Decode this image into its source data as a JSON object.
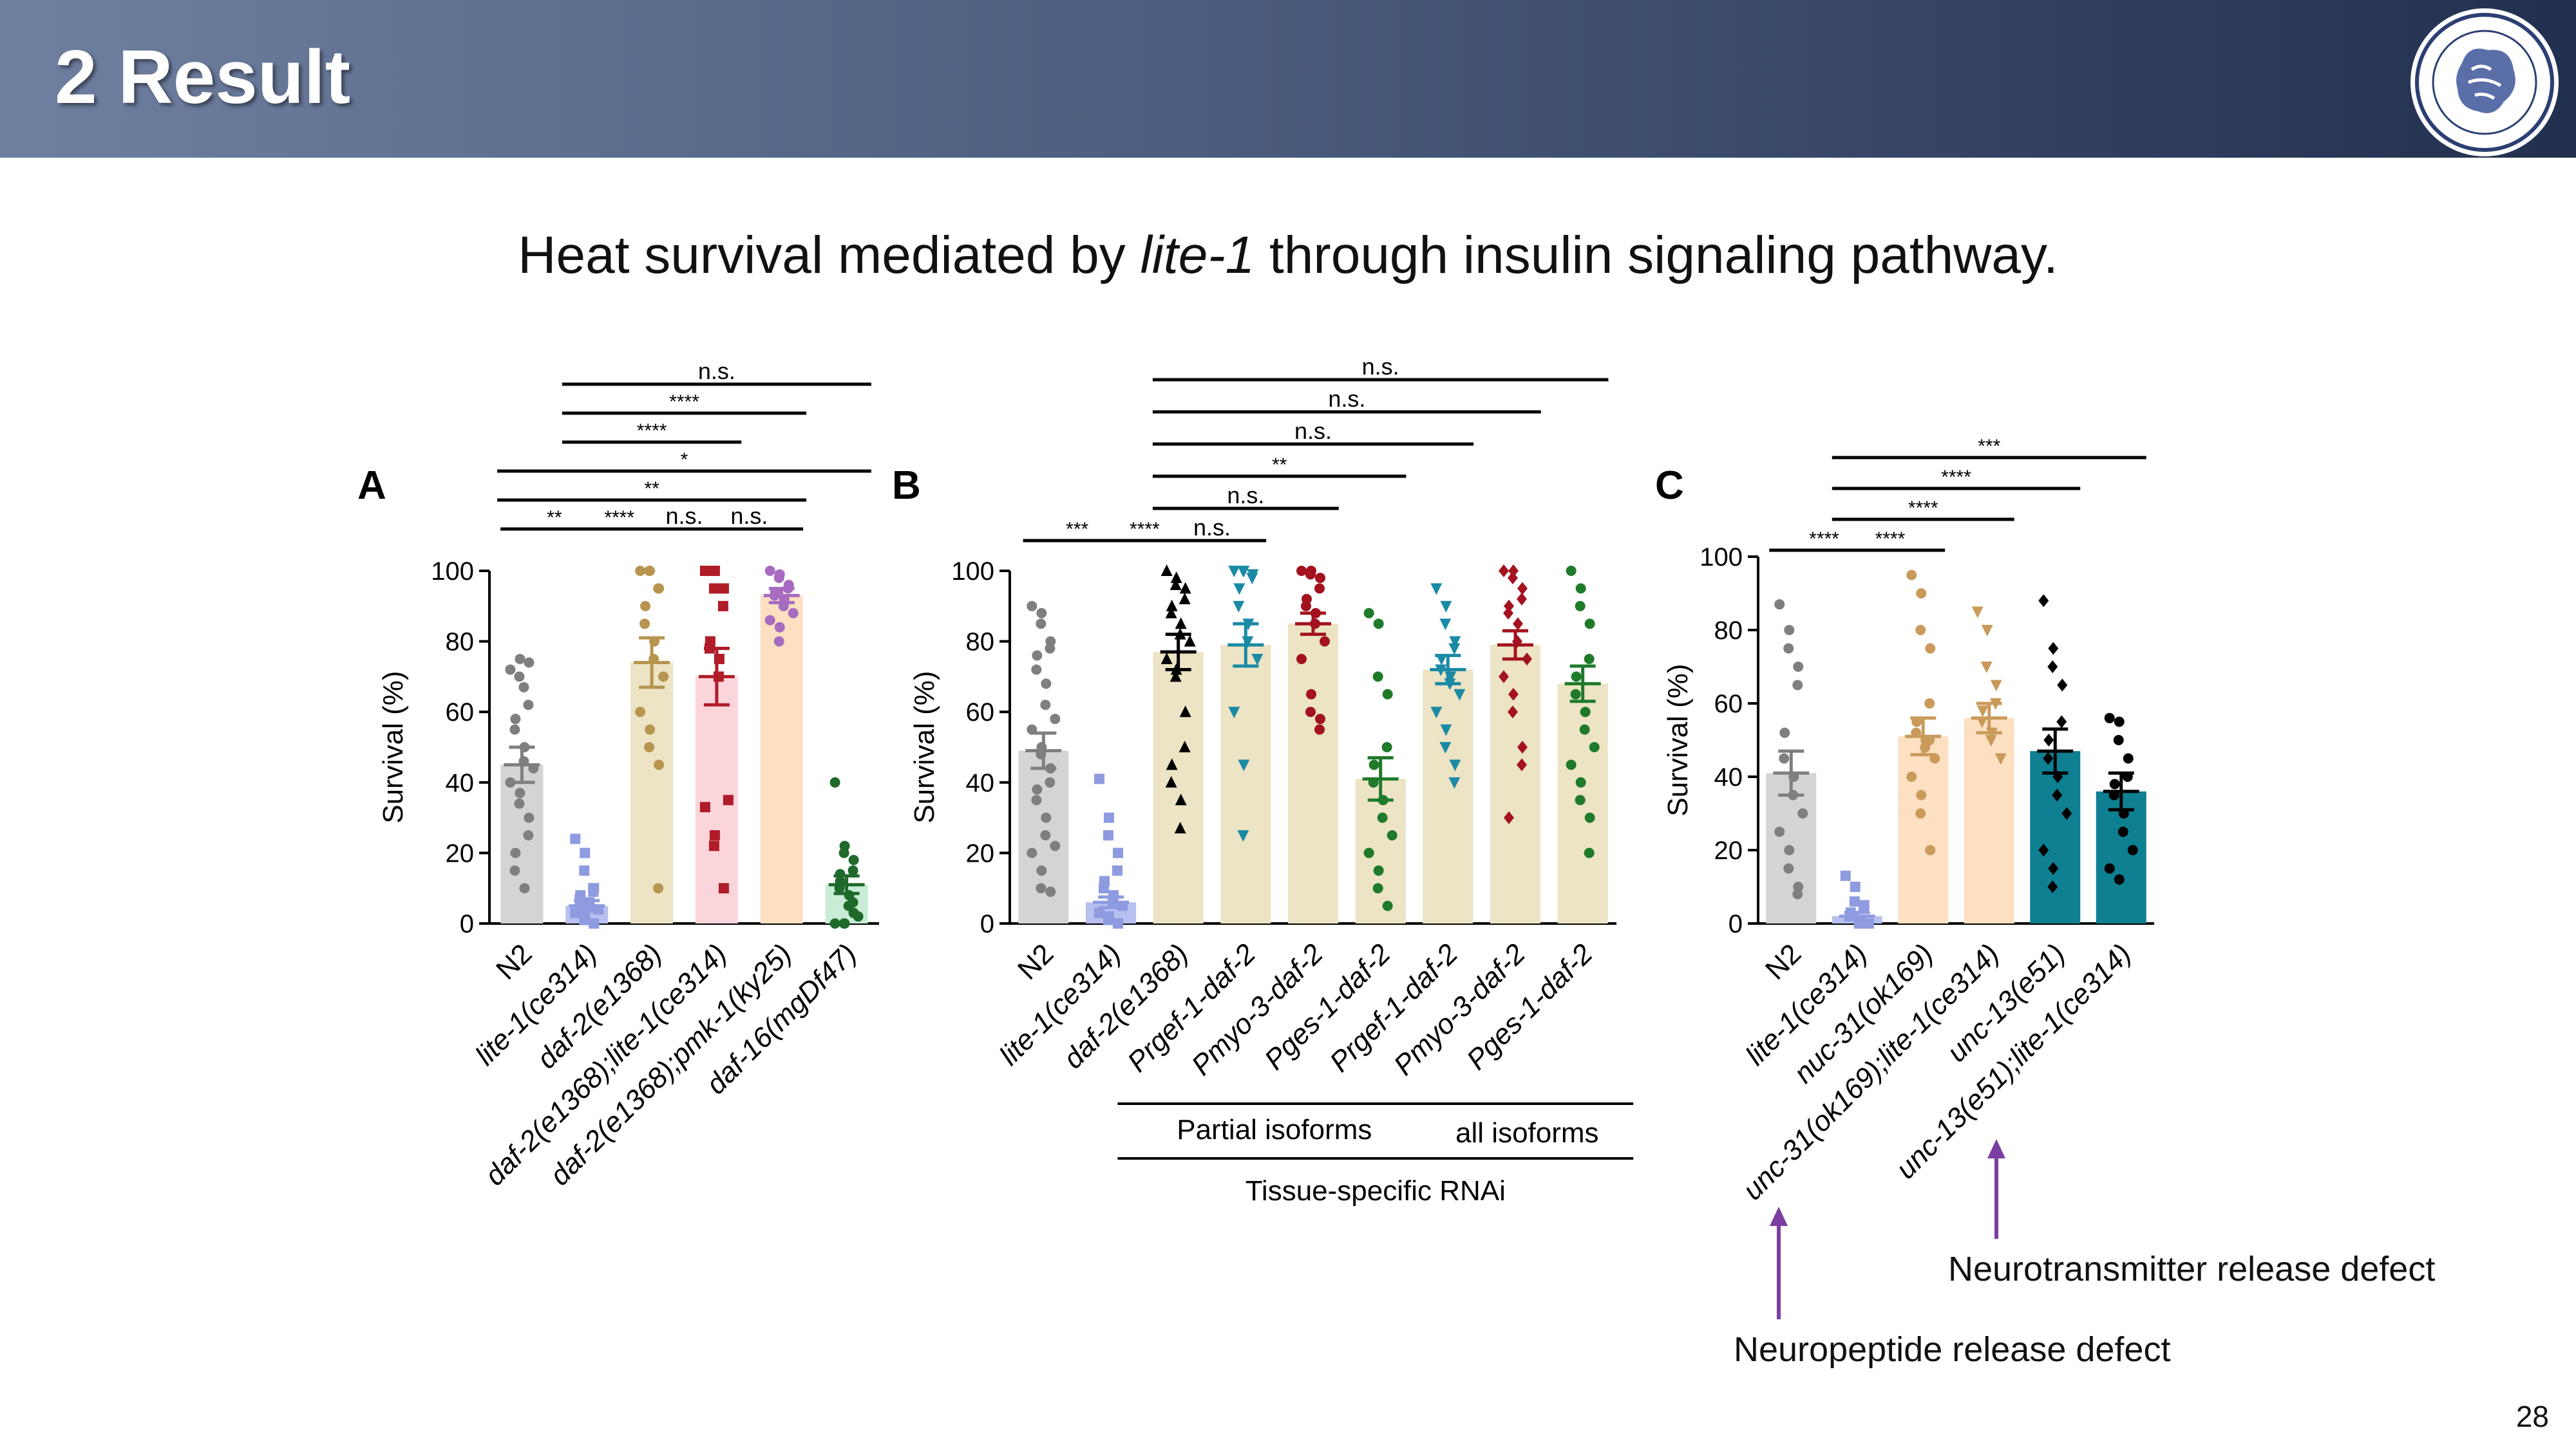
{
  "header": {
    "title": "2 Result"
  },
  "subtitle": {
    "prefix": "Heat survival mediated by ",
    "italic": "lite-1",
    "suffix": " through insulin signaling pathway."
  },
  "page_number": "28",
  "colors": {
    "header_start": "#6f7f9f",
    "header_end": "#22304f",
    "arrow": "#7a3fa0"
  },
  "annotations": {
    "neurotransmitter": "Neurotransmitter release defect",
    "neuropeptide": "Neuropeptide release defect"
  },
  "chart_data": [
    {
      "panel": "A",
      "type": "bar",
      "ylabel": "Survival (%)",
      "ylim": [
        0,
        100
      ],
      "yticks": [
        0,
        20,
        40,
        60,
        80,
        100
      ],
      "categories": [
        "N2",
        "lite-1(ce314)",
        "daf-2(e1368)",
        "daf-2(e1368);lite-1(ce314)",
        "daf-2(e1368);pmk-1(ky25)",
        "daf-16(mgDf47)"
      ],
      "values": [
        45,
        5,
        74,
        70,
        93,
        11
      ],
      "sem": [
        5,
        1.5,
        7,
        8,
        2,
        2.5
      ],
      "bar_colors": [
        "#d4d4d4",
        "#b7c0ee",
        "#ece4c4",
        "#fbd5da",
        "#fde0c2",
        "#c8ecd5"
      ],
      "point_colors": [
        "#7f7f7f",
        "#8e9be0",
        "#b7954f",
        "#b01c28",
        "#a76bc0",
        "#1f6a2a"
      ],
      "markers": [
        "circle",
        "square",
        "circle",
        "square",
        "circle",
        "circle"
      ],
      "points": [
        [
          72,
          75,
          70,
          74,
          62,
          58,
          55,
          50,
          46,
          44,
          40,
          37,
          34,
          30,
          25,
          20,
          15,
          10,
          67
        ],
        [
          24,
          20,
          15,
          10,
          9,
          8,
          7,
          6,
          5,
          4,
          3,
          2,
          1,
          0,
          10,
          5
        ],
        [
          100,
          100,
          100,
          95,
          95,
          90,
          85,
          80,
          75,
          70,
          60,
          55,
          50,
          45,
          10
        ],
        [
          100,
          100,
          95,
          95,
          90,
          80,
          78,
          75,
          70,
          35,
          33,
          25,
          22,
          10
        ],
        [
          100,
          99,
          98,
          96,
          95,
          94,
          93,
          92,
          90,
          88,
          86,
          84,
          80
        ],
        [
          40,
          22,
          20,
          18,
          15,
          12,
          10,
          8,
          5,
          2,
          0,
          0,
          0,
          3,
          6,
          14
        ]
      ],
      "comparisons": [
        {
          "from": 0,
          "to": 1,
          "label": "**",
          "level": 0
        },
        {
          "from": 1,
          "to": 2,
          "label": "****",
          "level": 0
        },
        {
          "from": 2,
          "to": 3,
          "label": "n.s.",
          "level": 0
        },
        {
          "from": 3,
          "to": 4,
          "label": "n.s.",
          "level": 0
        },
        {
          "from": 0,
          "to": 4,
          "label": "**",
          "level": 1
        },
        {
          "from": 0,
          "to": 5,
          "label": "*",
          "level": 2
        },
        {
          "from": 1,
          "to": 3,
          "label": "****",
          "level": 3
        },
        {
          "from": 1,
          "to": 4,
          "label": "****",
          "level": 4
        },
        {
          "from": 1,
          "to": 5,
          "label": "n.s.",
          "level": 5
        }
      ]
    },
    {
      "panel": "B",
      "type": "bar",
      "ylabel": "Survival (%)",
      "ylim": [
        0,
        100
      ],
      "yticks": [
        0,
        20,
        40,
        60,
        80,
        100
      ],
      "categories": [
        "N2",
        "lite-1(ce314)",
        "daf-2(e1368)",
        "Prgef-1-daf-2",
        "Pmyo-3-daf-2",
        "Pges-1-daf-2",
        "Prgef-1-daf-2",
        "Pmyo-3-daf-2",
        "Pges-1-daf-2"
      ],
      "values": [
        49,
        6,
        77,
        79,
        85,
        41,
        72,
        79,
        68
      ],
      "sem": [
        5,
        1.5,
        5,
        6,
        3,
        6,
        4,
        4,
        5
      ],
      "bar_colors": [
        "#d4d4d4",
        "#b7c0ee",
        "#ece4c4",
        "#ece4c4",
        "#ece4c4",
        "#ece4c4",
        "#ece4c4",
        "#ece4c4",
        "#ece4c4"
      ],
      "point_colors": [
        "#7f7f7f",
        "#8e9be0",
        "#000000",
        "#1a8aa5",
        "#a3121e",
        "#1f7a2a",
        "#1a8aa5",
        "#a3121e",
        "#1f7a2a"
      ],
      "markers": [
        "circle",
        "square",
        "triangle-up",
        "triangle-down",
        "circle",
        "circle",
        "triangle-down",
        "diamond",
        "circle"
      ],
      "points": [
        [
          90,
          88,
          85,
          80,
          78,
          76,
          72,
          68,
          62,
          58,
          55,
          50,
          48,
          44,
          40,
          38,
          35,
          30,
          25,
          22,
          20,
          15,
          10,
          9
        ],
        [
          41,
          30,
          25,
          20,
          15,
          12,
          10,
          8,
          6,
          5,
          3,
          2,
          1,
          0
        ],
        [
          100,
          98,
          96,
          95,
          92,
          90,
          88,
          85,
          82,
          80,
          75,
          72,
          70,
          60,
          50,
          45,
          40,
          35,
          27
        ],
        [
          100,
          100,
          100,
          99,
          98,
          95,
          90,
          85,
          80,
          75,
          60,
          45,
          25
        ],
        [
          100,
          100,
          99,
          98,
          95,
          92,
          90,
          88,
          85,
          80,
          75,
          65,
          60,
          58,
          55
        ],
        [
          88,
          85,
          70,
          65,
          50,
          45,
          40,
          35,
          30,
          25,
          20,
          15,
          10,
          5
        ],
        [
          95,
          90,
          85,
          80,
          78,
          75,
          72,
          70,
          68,
          65,
          60,
          55,
          50,
          45,
          40
        ],
        [
          100,
          100,
          98,
          95,
          92,
          90,
          88,
          85,
          80,
          75,
          70,
          65,
          60,
          50,
          45,
          30
        ],
        [
          100,
          95,
          90,
          85,
          75,
          70,
          65,
          60,
          55,
          50,
          45,
          40,
          35,
          30,
          20
        ]
      ],
      "comparisons": [
        {
          "from": 0,
          "to": 1,
          "label": "***",
          "level": 0
        },
        {
          "from": 1,
          "to": 2,
          "label": "****",
          "level": 0
        },
        {
          "from": 2,
          "to": 3,
          "label": "n.s.",
          "level": 0
        },
        {
          "from": 2,
          "to": 4,
          "label": "n.s.",
          "level": 1
        },
        {
          "from": 2,
          "to": 5,
          "label": "**",
          "level": 2
        },
        {
          "from": 2,
          "to": 6,
          "label": "n.s.",
          "level": 3
        },
        {
          "from": 2,
          "to": 7,
          "label": "n.s.",
          "level": 4
        },
        {
          "from": 2,
          "to": 8,
          "label": "n.s.",
          "level": 5
        }
      ],
      "groups": [
        {
          "label": "Partial isoforms",
          "from": 2,
          "to": 5
        },
        {
          "label": "all isoforms",
          "from": 6,
          "to": 8
        },
        {
          "label": "Tissue-specific RNAi",
          "from": 2,
          "to": 8
        }
      ]
    },
    {
      "panel": "C",
      "type": "bar",
      "ylabel": "Survival (%)",
      "ylim": [
        0,
        100
      ],
      "yticks": [
        0,
        20,
        40,
        60,
        80,
        100
      ],
      "categories": [
        "N2",
        "lite-1(ce314)",
        "nuc-31(ok169)",
        "unc-31(ok169);lite-1(ce314)",
        "unc-13(e51)",
        "unc-13(e51);lite-1(ce314)"
      ],
      "values": [
        41,
        2,
        51,
        56,
        47,
        36
      ],
      "sem": [
        6,
        1,
        5,
        4,
        6,
        5
      ],
      "bar_colors": [
        "#d4d4d4",
        "#b7c0ee",
        "#fde0c2",
        "#fde0c2",
        "#0f7f92",
        "#0f7f92"
      ],
      "point_colors": [
        "#7f7f7f",
        "#8e9be0",
        "#c99a5a",
        "#c99a5a",
        "#000000",
        "#000000"
      ],
      "markers": [
        "circle",
        "square",
        "circle",
        "triangle-down",
        "diamond",
        "circle"
      ],
      "points": [
        [
          87,
          80,
          75,
          70,
          65,
          52,
          45,
          40,
          35,
          30,
          25,
          20,
          15,
          10,
          8
        ],
        [
          13,
          10,
          6,
          5,
          4,
          3,
          2,
          1,
          0,
          0
        ],
        [
          95,
          90,
          80,
          75,
          60,
          55,
          52,
          50,
          48,
          45,
          40,
          35,
          30,
          20,
          50
        ],
        [
          85,
          80,
          70,
          65,
          60,
          58,
          55,
          52,
          50,
          45
        ],
        [
          88,
          75,
          70,
          65,
          55,
          50,
          45,
          40,
          35,
          30,
          20,
          15,
          10
        ],
        [
          56,
          55,
          50,
          45,
          40,
          38,
          35,
          30,
          25,
          20,
          15,
          12
        ]
      ],
      "comparisons": [
        {
          "from": 0,
          "to": 1,
          "label": "****",
          "level": 0
        },
        {
          "from": 1,
          "to": 2,
          "label": "****",
          "level": 0
        },
        {
          "from": 1,
          "to": 3,
          "label": "****",
          "level": 1
        },
        {
          "from": 1,
          "to": 4,
          "label": "****",
          "level": 2
        },
        {
          "from": 1,
          "to": 5,
          "label": "***",
          "level": 3
        }
      ]
    }
  ]
}
